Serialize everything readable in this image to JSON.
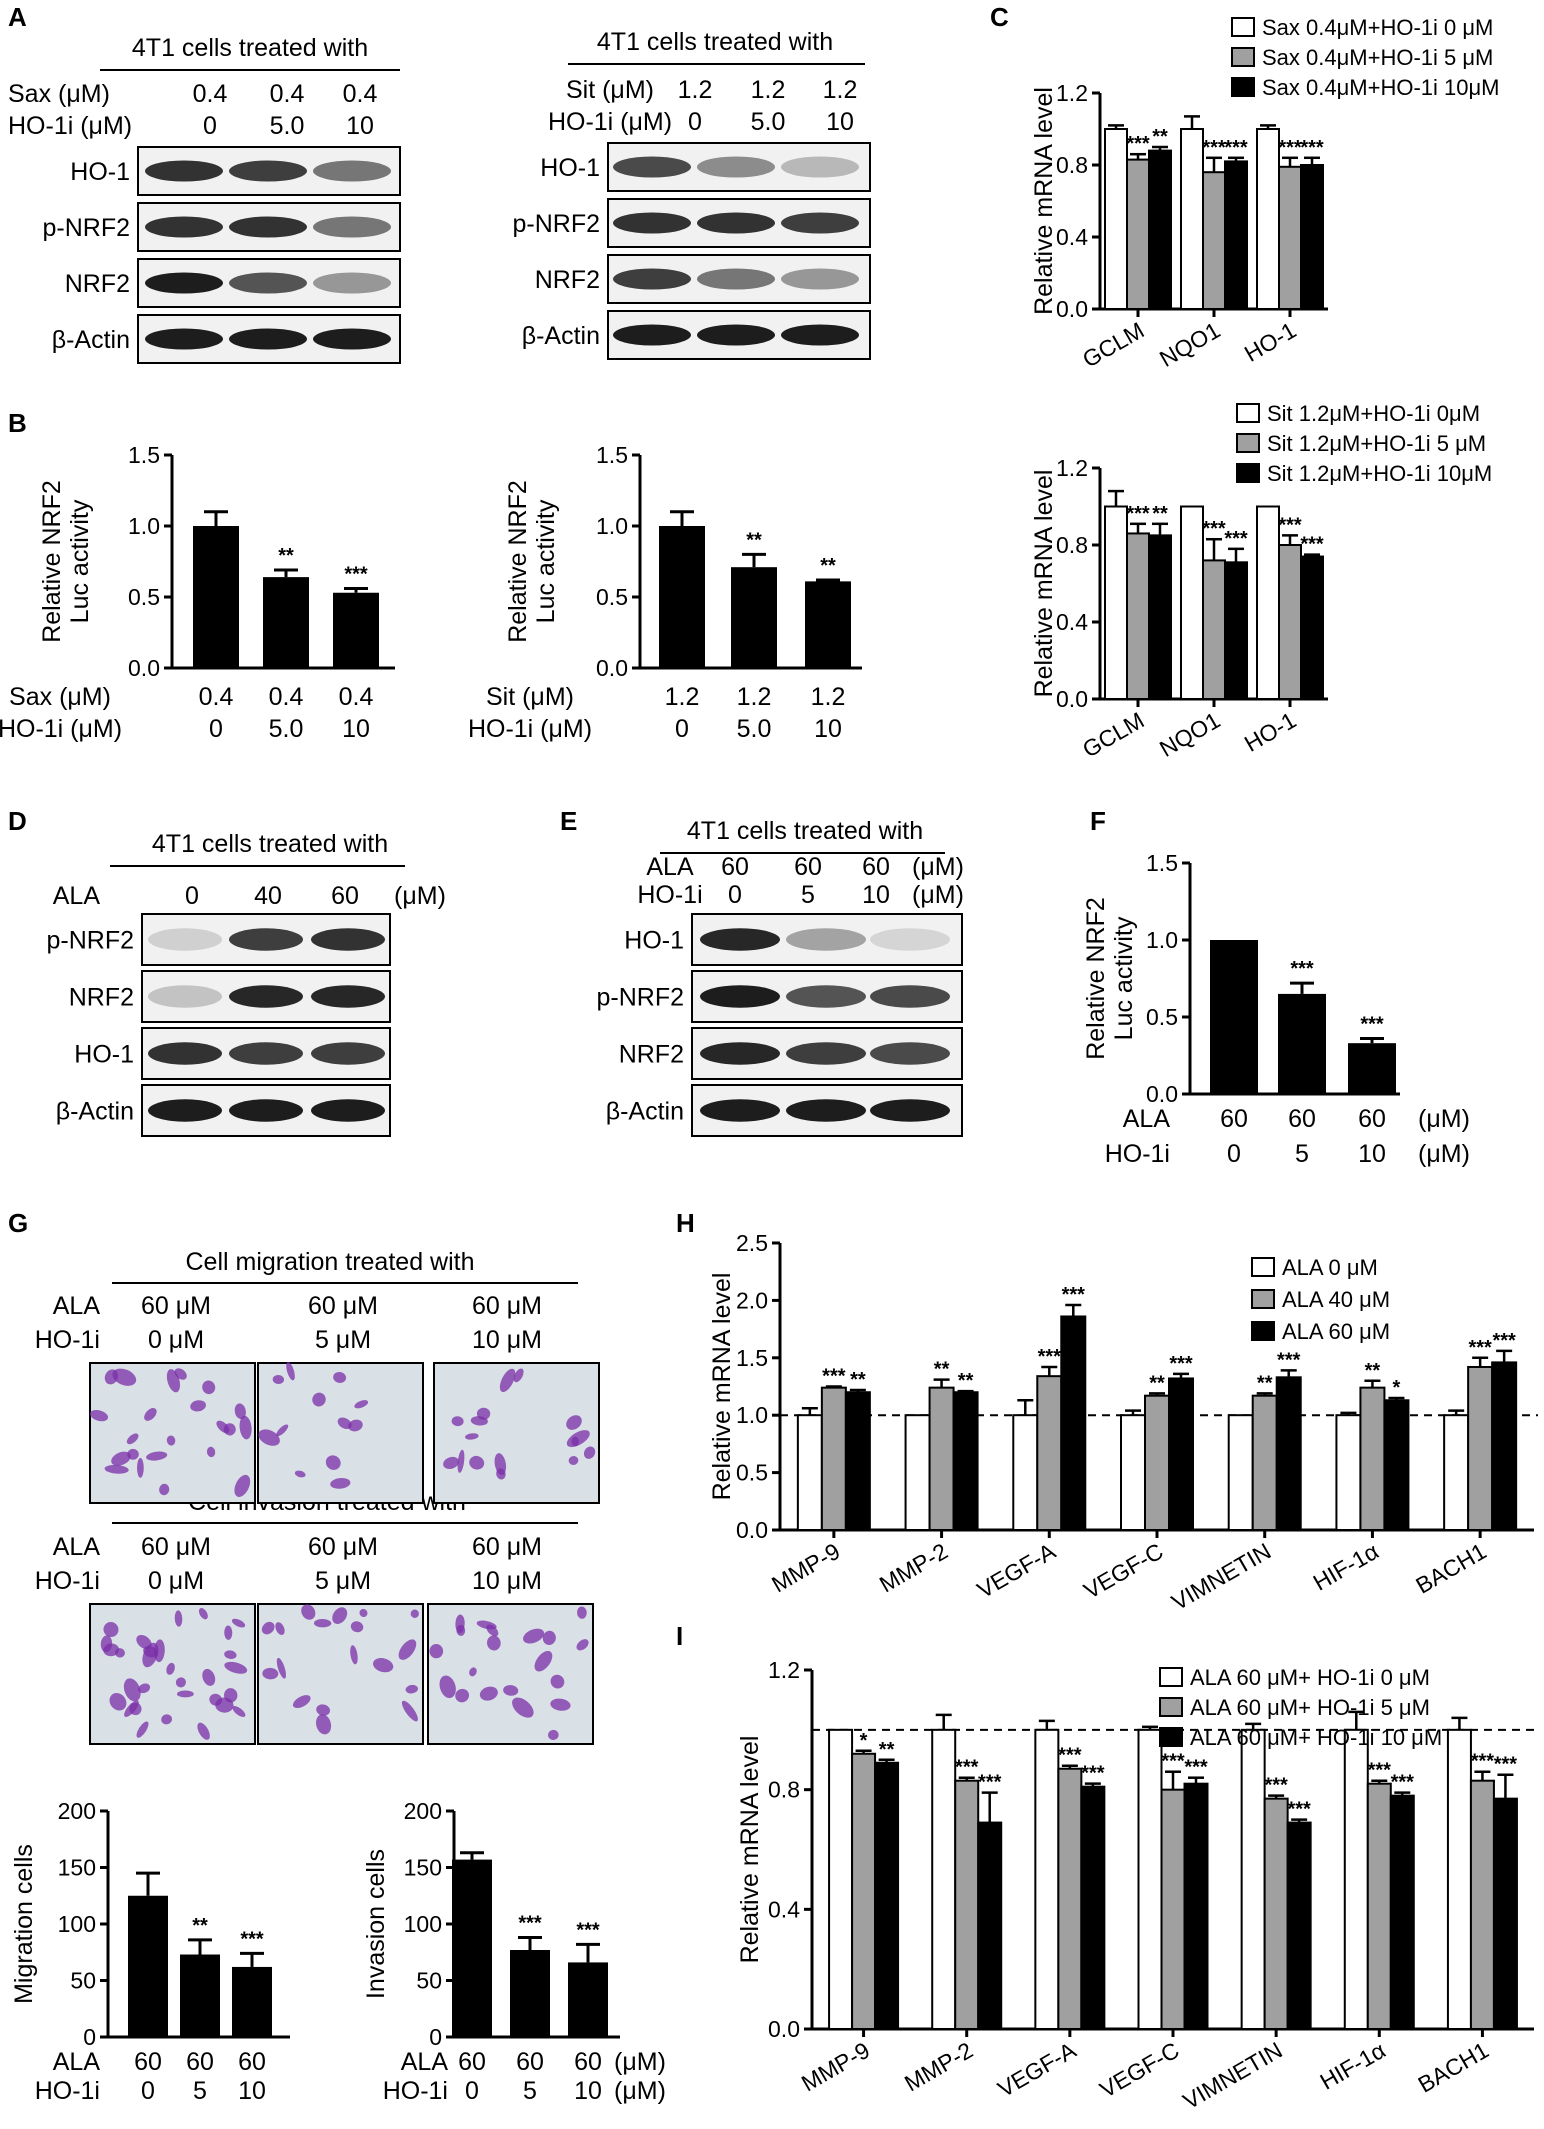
{
  "panels": {
    "A": "A",
    "B": "B",
    "C": "C",
    "D": "D",
    "E": "E",
    "F": "F",
    "G": "G",
    "H": "H",
    "I": "I"
  },
  "header": "4T1 cells treated with",
  "blotA1": {
    "rows": [
      [
        "Sax (μM)",
        "0.4",
        "0.4",
        "0.4"
      ],
      [
        "HO-1i (μM)",
        "0",
        "5.0",
        "10"
      ]
    ],
    "bands": [
      "HO-1",
      "p-NRF2",
      "NRF2",
      "β-Actin"
    ]
  },
  "blotA2": {
    "rows": [
      [
        "Sit (μM)",
        "1.2",
        "1.2",
        "1.2"
      ],
      [
        "HO-1i (μM)",
        "0",
        "5.0",
        "10"
      ]
    ],
    "bands": [
      "HO-1",
      "p-NRF2",
      "NRF2",
      "β-Actin"
    ]
  },
  "blotD": {
    "rows": [
      [
        "ALA",
        "0",
        "40",
        "60",
        "(μM)"
      ]
    ],
    "bands": [
      "p-NRF2",
      "NRF2",
      "HO-1",
      "β-Actin"
    ]
  },
  "blotE": {
    "rows": [
      [
        "ALA",
        "60",
        "60",
        "60",
        "(μM)"
      ],
      [
        "HO-1i",
        "0",
        "5",
        "10",
        "(μM)"
      ]
    ],
    "bands": [
      "HO-1",
      "p-NRF2",
      "NRF2",
      "β-Actin"
    ]
  },
  "panelG": {
    "migration_title": "Cell migration treated with",
    "invasion_title": "Cell invasion treated with",
    "rows": [
      [
        "ALA",
        "60 μM",
        "60 μM",
        "60 μM"
      ],
      [
        "HO-1i",
        "0 μM",
        "5 μM",
        "10 μM"
      ]
    ]
  },
  "chart_data": [
    {
      "id": "B1",
      "type": "bar",
      "ylabel": "Relative NRF2\nLuc activity",
      "ylim": [
        0,
        1.5
      ],
      "yticks": [
        "0.0",
        "0.5",
        "1.0",
        "1.5"
      ],
      "values": [
        1.0,
        0.64,
        0.53
      ],
      "errors": [
        0.1,
        0.05,
        0.03
      ],
      "sig": [
        "",
        "**",
        "***"
      ],
      "cond_rows": [
        [
          "Sax (μM)",
          "0.4",
          "0.4",
          "0.4"
        ],
        [
          "HO-1i (μM)",
          "0",
          "5.0",
          "10"
        ]
      ]
    },
    {
      "id": "B2",
      "type": "bar",
      "ylabel": "Relative NRF2\nLuc activity",
      "ylim": [
        0,
        1.5
      ],
      "yticks": [
        "0.0",
        "0.5",
        "1.0",
        "1.5"
      ],
      "values": [
        1.0,
        0.71,
        0.61
      ],
      "errors": [
        0.1,
        0.09,
        0.01
      ],
      "sig": [
        "",
        "**",
        "**"
      ],
      "cond_rows": [
        [
          "Sit (μM)",
          "1.2",
          "1.2",
          "1.2"
        ],
        [
          "HO-1i (μM)",
          "0",
          "5.0",
          "10"
        ]
      ]
    },
    {
      "id": "C1",
      "type": "bar",
      "ylabel": "Relative mRNA level",
      "ylim": [
        0,
        1.2
      ],
      "yticks": [
        "0.0",
        "0.4",
        "0.8",
        "1.2"
      ],
      "categories": [
        "GCLM",
        "NQO1",
        "HO-1"
      ],
      "series": [
        {
          "name": "Sax 0.4μM+HO-1i 0 μM",
          "color": "#ffffff",
          "values": [
            1.0,
            1.0,
            1.0
          ],
          "errors": [
            0.02,
            0.07,
            0.02
          ],
          "sig": [
            "",
            "",
            ""
          ]
        },
        {
          "name": "Sax 0.4μM+HO-1i 5 μM",
          "color": "#a0a0a0",
          "values": [
            0.83,
            0.76,
            0.79
          ],
          "errors": [
            0.03,
            0.08,
            0.05
          ],
          "sig": [
            "***",
            "***",
            "***"
          ]
        },
        {
          "name": "Sax 0.4μM+HO-1i 10μM",
          "color": "#000000",
          "values": [
            0.88,
            0.82,
            0.8
          ],
          "errors": [
            0.02,
            0.02,
            0.04
          ],
          "sig": [
            "**",
            "***",
            "***"
          ]
        }
      ]
    },
    {
      "id": "C2",
      "type": "bar",
      "ylabel": "Relative mRNA level",
      "ylim": [
        0,
        1.2
      ],
      "yticks": [
        "0.0",
        "0.4",
        "0.8",
        "1.2"
      ],
      "categories": [
        "GCLM",
        "NQO1",
        "HO-1"
      ],
      "series": [
        {
          "name": "Sit 1.2μM+HO-1i 0μM",
          "color": "#ffffff",
          "values": [
            1.0,
            1.0,
            1.0
          ],
          "errors": [
            0.08,
            0.0,
            0.0
          ],
          "sig": [
            "",
            "",
            ""
          ]
        },
        {
          "name": "Sit 1.2μM+HO-1i 5 μM",
          "color": "#a0a0a0",
          "values": [
            0.86,
            0.72,
            0.8
          ],
          "errors": [
            0.05,
            0.11,
            0.05
          ],
          "sig": [
            "***",
            "***",
            "***"
          ]
        },
        {
          "name": "Sit 1.2μM+HO-1i 10μM",
          "color": "#000000",
          "values": [
            0.85,
            0.71,
            0.74
          ],
          "errors": [
            0.06,
            0.07,
            0.01
          ],
          "sig": [
            "**",
            "***",
            "***"
          ]
        }
      ]
    },
    {
      "id": "F",
      "type": "bar",
      "ylabel": "Relative NRF2\nLuc activity",
      "ylim": [
        0,
        1.5
      ],
      "yticks": [
        "0.0",
        "0.5",
        "1.0",
        "1.5"
      ],
      "values": [
        1.0,
        0.65,
        0.33
      ],
      "errors": [
        0.0,
        0.07,
        0.03
      ],
      "sig": [
        "",
        "***",
        "***"
      ],
      "cond_rows": [
        [
          "ALA",
          "60",
          "60",
          "60",
          "(μM)"
        ],
        [
          "HO-1i",
          "0",
          "5",
          "10",
          "(μM)"
        ]
      ]
    },
    {
      "id": "G1",
      "type": "bar",
      "ylabel": "Migration cells",
      "ylim": [
        0,
        200
      ],
      "yticks": [
        "0",
        "50",
        "100",
        "150",
        "200"
      ],
      "values": [
        125,
        73,
        62
      ],
      "errors": [
        20,
        13,
        12
      ],
      "sig": [
        "",
        "**",
        "***"
      ],
      "cond_rows": [
        [
          "ALA",
          "60",
          "60",
          "60"
        ],
        [
          "HO-1i",
          "0",
          "5",
          "10"
        ]
      ]
    },
    {
      "id": "G2",
      "type": "bar",
      "ylabel": "Invasion cells",
      "ylim": [
        0,
        200
      ],
      "yticks": [
        "0",
        "50",
        "100",
        "150",
        "200"
      ],
      "values": [
        157,
        77,
        66
      ],
      "errors": [
        6,
        11,
        16
      ],
      "sig": [
        "",
        "***",
        "***"
      ],
      "cond_rows": [
        [
          "ALA",
          "60",
          "60",
          "60",
          "(μM)"
        ],
        [
          "HO-1i",
          "0",
          "5",
          "10",
          "(μM)"
        ]
      ]
    },
    {
      "id": "H",
      "type": "bar",
      "ylabel": "Relative mRNA level",
      "ylim": [
        0,
        2.5
      ],
      "yticks": [
        "0.0",
        "0.5",
        "1.0",
        "1.5",
        "2.0",
        "2.5"
      ],
      "refline": 1.0,
      "categories": [
        "MMP-9",
        "MMP-2",
        "VEGF-A",
        "VEGF-C",
        "VIMNETIN",
        "HIF-1α",
        "BACH1"
      ],
      "series": [
        {
          "name": "ALA  0 μM",
          "color": "#ffffff",
          "values": [
            1.0,
            1.0,
            1.0,
            1.0,
            1.0,
            1.0,
            1.0
          ],
          "errors": [
            0.06,
            0.0,
            0.13,
            0.04,
            0.0,
            0.02,
            0.04
          ],
          "sig": [
            "",
            "",
            "",
            "",
            "",
            "",
            ""
          ]
        },
        {
          "name": "ALA 40 μM",
          "color": "#a0a0a0",
          "values": [
            1.24,
            1.24,
            1.34,
            1.17,
            1.17,
            1.24,
            1.42
          ],
          "errors": [
            0.01,
            0.07,
            0.08,
            0.02,
            0.02,
            0.06,
            0.08
          ],
          "sig": [
            "***",
            "**",
            "***",
            "**",
            "**",
            "**",
            "***"
          ]
        },
        {
          "name": "ALA 60 μM",
          "color": "#000000",
          "values": [
            1.2,
            1.2,
            1.86,
            1.32,
            1.33,
            1.13,
            1.46
          ],
          "errors": [
            0.02,
            0.01,
            0.1,
            0.04,
            0.06,
            0.02,
            0.1
          ],
          "sig": [
            "**",
            "**",
            "***",
            "***",
            "***",
            "*",
            "***"
          ]
        }
      ]
    },
    {
      "id": "I",
      "type": "bar",
      "ylabel": "Relative mRNA level",
      "ylim": [
        0,
        1.2
      ],
      "yticks": [
        "0.0",
        "0.4",
        "0.8",
        "1.2"
      ],
      "refline": 1.0,
      "categories": [
        "MMP-9",
        "MMP-2",
        "VEGF-A",
        "VEGF-C",
        "VIMNETIN",
        "HIF-1α",
        "BACH1"
      ],
      "series": [
        {
          "name": "ALA 60 μM+ HO-1i 0 μM",
          "color": "#ffffff",
          "values": [
            1.0,
            1.0,
            1.0,
            1.0,
            1.0,
            1.0,
            1.0
          ],
          "errors": [
            0.0,
            0.05,
            0.03,
            0.01,
            0.02,
            0.06,
            0.04
          ],
          "sig": [
            "",
            "",
            "",
            "",
            "",
            "",
            ""
          ]
        },
        {
          "name": "ALA 60 μM+ HO-1i 5 μM",
          "color": "#a0a0a0",
          "values": [
            0.92,
            0.83,
            0.87,
            0.8,
            0.77,
            0.82,
            0.83
          ],
          "errors": [
            0.01,
            0.01,
            0.01,
            0.06,
            0.01,
            0.01,
            0.03
          ],
          "sig": [
            "*",
            "***",
            "***",
            "***",
            "***",
            "***",
            "***"
          ]
        },
        {
          "name": "ALA 60 μM+ HO-1i 10 μM",
          "color": "#000000",
          "values": [
            0.89,
            0.69,
            0.81,
            0.82,
            0.69,
            0.78,
            0.77
          ],
          "errors": [
            0.01,
            0.1,
            0.01,
            0.02,
            0.01,
            0.01,
            0.08
          ],
          "sig": [
            "**",
            "***",
            "***",
            "***",
            "***",
            "***",
            "***"
          ]
        }
      ]
    }
  ]
}
